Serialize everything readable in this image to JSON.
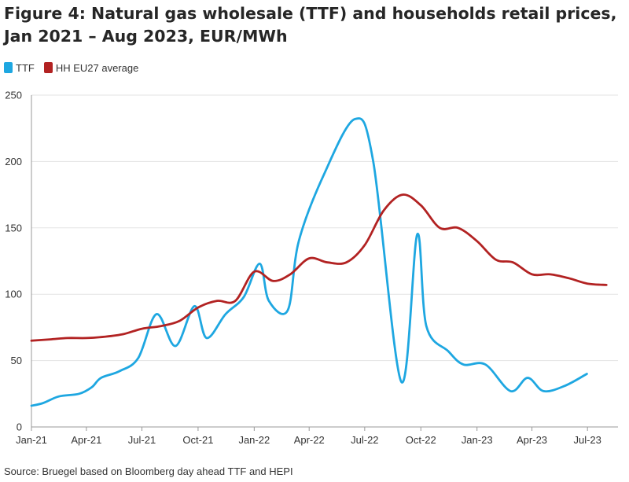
{
  "chart_data": {
    "type": "line",
    "title": "Figure 4: Natural gas wholesale (TTF) and households retail prices, Jan 2021 – Aug 2023, EUR/MWh",
    "source": "Source: Bruegel based on Bloomberg day ahead TTF and HEPI",
    "xlabel": "",
    "ylabel": "",
    "ylim": [
      0,
      250
    ],
    "yticks": [
      0,
      50,
      100,
      150,
      200,
      250
    ],
    "xlim": [
      "2021-01-01",
      "2023-08-20"
    ],
    "xticks": [
      {
        "date": "2021-01-01",
        "label": "Jan-21"
      },
      {
        "date": "2021-04-01",
        "label": "Apr-21"
      },
      {
        "date": "2021-07-01",
        "label": "Jul-21"
      },
      {
        "date": "2021-10-01",
        "label": "Oct-21"
      },
      {
        "date": "2022-01-01",
        "label": "Jan-22"
      },
      {
        "date": "2022-04-01",
        "label": "Apr-22"
      },
      {
        "date": "2022-07-01",
        "label": "Jul-22"
      },
      {
        "date": "2022-10-01",
        "label": "Oct-22"
      },
      {
        "date": "2023-01-01",
        "label": "Jan-23"
      },
      {
        "date": "2023-04-01",
        "label": "Apr-23"
      },
      {
        "date": "2023-07-01",
        "label": "Jul-23"
      }
    ],
    "grid": true,
    "legend_position": "top-left",
    "series": [
      {
        "name": "TTF",
        "color": "#1ea7e1",
        "points": [
          [
            "2021-01-01",
            16
          ],
          [
            "2021-01-20",
            18
          ],
          [
            "2021-02-15",
            23
          ],
          [
            "2021-03-20",
            25
          ],
          [
            "2021-04-10",
            30
          ],
          [
            "2021-04-25",
            37
          ],
          [
            "2021-05-25",
            42
          ],
          [
            "2021-06-25",
            52
          ],
          [
            "2021-07-25",
            85
          ],
          [
            "2021-08-25",
            61
          ],
          [
            "2021-09-25",
            91
          ],
          [
            "2021-10-15",
            67
          ],
          [
            "2021-11-15",
            85
          ],
          [
            "2021-12-15",
            98
          ],
          [
            "2022-01-10",
            123
          ],
          [
            "2022-01-25",
            95
          ],
          [
            "2022-02-25",
            88
          ],
          [
            "2022-03-15",
            140
          ],
          [
            "2022-04-25",
            190
          ],
          [
            "2022-06-15",
            232
          ],
          [
            "2022-07-15",
            200
          ],
          [
            "2022-08-30",
            34
          ],
          [
            "2022-09-25",
            145
          ],
          [
            "2022-10-10",
            76
          ],
          [
            "2022-11-15",
            57
          ],
          [
            "2022-12-10",
            47
          ],
          [
            "2023-01-15",
            47
          ],
          [
            "2023-02-25",
            27
          ],
          [
            "2023-03-25",
            37
          ],
          [
            "2023-04-20",
            27
          ],
          [
            "2023-05-25",
            31
          ],
          [
            "2023-06-30",
            40
          ]
        ]
      },
      {
        "name": "HH EU27 average",
        "color": "#b22222",
        "points": [
          [
            "2021-01-01",
            65
          ],
          [
            "2021-02-01",
            66
          ],
          [
            "2021-03-01",
            67
          ],
          [
            "2021-04-01",
            67
          ],
          [
            "2021-05-01",
            68
          ],
          [
            "2021-06-01",
            70
          ],
          [
            "2021-07-01",
            74
          ],
          [
            "2021-08-01",
            76
          ],
          [
            "2021-09-01",
            80
          ],
          [
            "2021-10-01",
            90
          ],
          [
            "2021-11-01",
            95
          ],
          [
            "2021-12-01",
            95
          ],
          [
            "2022-01-01",
            117
          ],
          [
            "2022-02-01",
            110
          ],
          [
            "2022-03-01",
            115
          ],
          [
            "2022-04-01",
            127
          ],
          [
            "2022-05-01",
            124
          ],
          [
            "2022-06-01",
            124
          ],
          [
            "2022-07-01",
            137
          ],
          [
            "2022-08-01",
            163
          ],
          [
            "2022-09-01",
            175
          ],
          [
            "2022-10-01",
            167
          ],
          [
            "2022-11-01",
            150
          ],
          [
            "2022-12-01",
            150
          ],
          [
            "2023-01-01",
            140
          ],
          [
            "2023-02-01",
            126
          ],
          [
            "2023-03-01",
            124
          ],
          [
            "2023-04-01",
            115
          ],
          [
            "2023-05-01",
            115
          ],
          [
            "2023-06-01",
            112
          ],
          [
            "2023-07-01",
            108
          ],
          [
            "2023-08-01",
            107
          ]
        ]
      }
    ]
  }
}
